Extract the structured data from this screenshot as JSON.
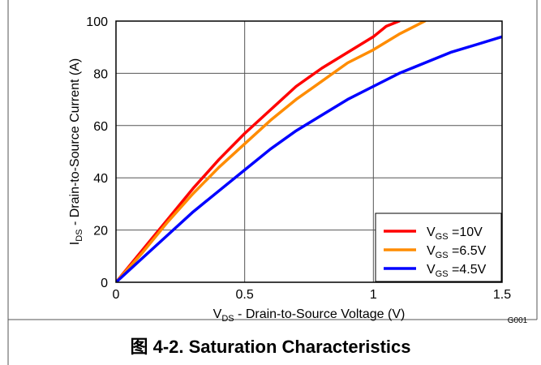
{
  "caption": "图 4-2. Saturation Characteristics",
  "figure_code": "G001",
  "chart_data": {
    "type": "line",
    "xlabel": {
      "main": "V",
      "sub": "DS",
      "rest": " - Drain-to-Source Voltage (V)"
    },
    "ylabel": {
      "main": "I",
      "sub": "DS",
      "rest": " - Drain-to-Source Current (A)"
    },
    "xlim": [
      0,
      1.5
    ],
    "ylim": [
      0,
      100
    ],
    "x_ticks": [
      0,
      0.5,
      1,
      1.5
    ],
    "x_tick_labels": [
      "0",
      "0.5",
      "1",
      "1.5"
    ],
    "y_ticks": [
      0,
      20,
      40,
      60,
      80,
      100
    ],
    "y_tick_labels": [
      "0",
      "20",
      "40",
      "60",
      "80",
      "100"
    ],
    "grid": true,
    "legend_position": "bottom-right",
    "series": [
      {
        "name": "VGS =10V",
        "legend": {
          "main": "V",
          "sub": "GS",
          "rest": " =10V"
        },
        "color": "#ff0000",
        "x": [
          0,
          0.1,
          0.2,
          0.3,
          0.4,
          0.5,
          0.6,
          0.7,
          0.8,
          0.9,
          1.0,
          1.05,
          1.1
        ],
        "y": [
          0,
          12,
          24,
          36,
          47,
          57,
          66,
          75,
          82,
          88,
          94,
          98,
          100
        ]
      },
      {
        "name": "VGS =6.5V",
        "legend": {
          "main": "V",
          "sub": "GS",
          "rest": " =6.5V"
        },
        "color": "#ff8c00",
        "x": [
          0,
          0.1,
          0.2,
          0.3,
          0.4,
          0.5,
          0.6,
          0.7,
          0.8,
          0.9,
          1.0,
          1.1,
          1.2
        ],
        "y": [
          0,
          11,
          23,
          34,
          44,
          53,
          62,
          70,
          77,
          84,
          89,
          95,
          100
        ]
      },
      {
        "name": "VGS =4.5V",
        "legend": {
          "main": "V",
          "sub": "GS",
          "rest": " =4.5V"
        },
        "color": "#0000ff",
        "x": [
          0,
          0.1,
          0.2,
          0.3,
          0.4,
          0.5,
          0.6,
          0.7,
          0.8,
          0.9,
          1.0,
          1.1,
          1.2,
          1.3,
          1.4,
          1.5
        ],
        "y": [
          0,
          9,
          18,
          27,
          35,
          43,
          51,
          58,
          64,
          70,
          75,
          80,
          84,
          88,
          91,
          94
        ]
      }
    ]
  }
}
